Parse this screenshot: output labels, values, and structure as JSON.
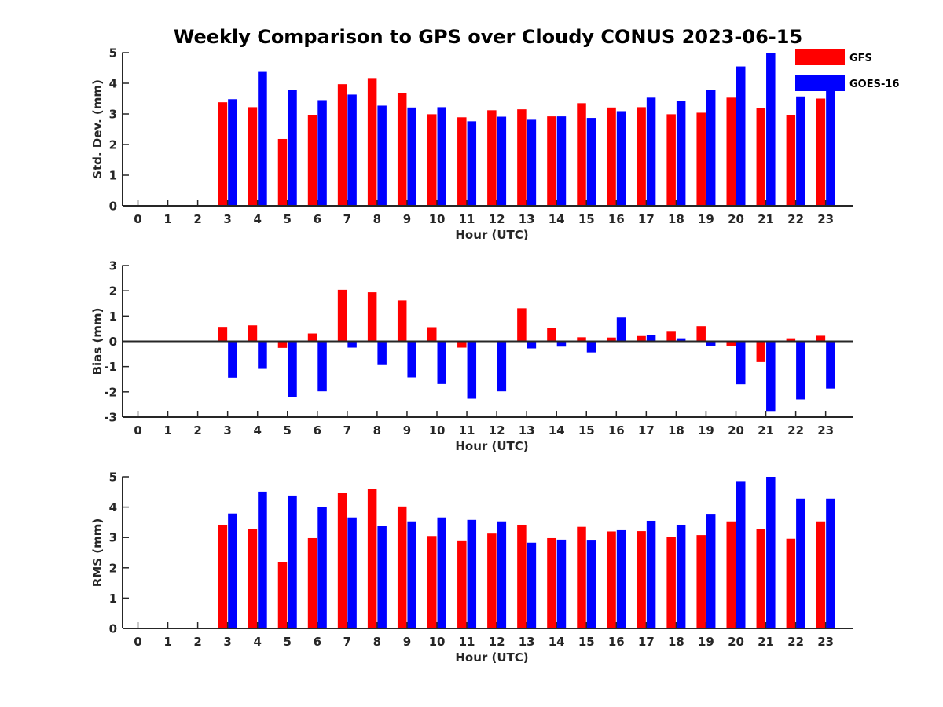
{
  "figure_title": "Weekly Comparison to GPS over Cloudy CONUS 2023-06-15",
  "colors": {
    "GFS": "#ff0000",
    "GOES-16": "#0000ff",
    "axis": "#262626"
  },
  "legend": [
    {
      "name": "GFS",
      "color": "#ff0000"
    },
    {
      "name": "GOES-16",
      "color": "#0000ff"
    }
  ],
  "chart_data": [
    {
      "type": "bar",
      "title": "",
      "xlabel": "Hour (UTC)",
      "ylabel": "Std. Dev. (mm)",
      "ylim": [
        0,
        5
      ],
      "yticks": [
        0,
        1,
        2,
        3,
        4,
        5
      ],
      "categories": [
        "0",
        "1",
        "2",
        "3",
        "4",
        "5",
        "6",
        "7",
        "8",
        "9",
        "10",
        "11",
        "12",
        "13",
        "14",
        "15",
        "16",
        "17",
        "18",
        "19",
        "20",
        "21",
        "22",
        "23"
      ],
      "series": [
        {
          "name": "GFS",
          "values": [
            0,
            0,
            0,
            3.38,
            3.22,
            2.18,
            2.96,
            3.97,
            4.17,
            3.68,
            2.99,
            2.89,
            3.12,
            3.15,
            2.92,
            3.35,
            3.21,
            3.22,
            2.99,
            3.04,
            3.53,
            3.18,
            2.96,
            3.5
          ]
        },
        {
          "name": "GOES-16",
          "values": [
            0,
            0,
            0,
            3.48,
            4.37,
            3.78,
            3.45,
            3.63,
            3.27,
            3.21,
            3.22,
            2.76,
            2.91,
            2.81,
            2.92,
            2.87,
            3.09,
            3.53,
            3.43,
            3.78,
            4.55,
            4.98,
            3.57,
            3.95
          ]
        }
      ]
    },
    {
      "type": "bar",
      "title": "",
      "xlabel": "Hour (UTC)",
      "ylabel": "Bias (mm)",
      "ylim": [
        -3,
        3
      ],
      "yticks": [
        -3,
        -2,
        -1,
        0,
        1,
        2,
        3
      ],
      "categories": [
        "0",
        "1",
        "2",
        "3",
        "4",
        "5",
        "6",
        "7",
        "8",
        "9",
        "10",
        "11",
        "12",
        "13",
        "14",
        "15",
        "16",
        "17",
        "18",
        "19",
        "20",
        "21",
        "22",
        "23"
      ],
      "series": [
        {
          "name": "GFS",
          "values": [
            0,
            0,
            0,
            0.57,
            0.63,
            -0.26,
            0.31,
            2.04,
            1.94,
            1.62,
            0.56,
            -0.25,
            -0.03,
            1.31,
            0.54,
            0.16,
            0.15,
            0.21,
            0.41,
            0.6,
            -0.17,
            -0.82,
            0.12,
            0.22
          ]
        },
        {
          "name": "GOES-16",
          "values": [
            0,
            0,
            0,
            -1.44,
            -1.09,
            -2.2,
            -1.98,
            -0.25,
            -0.94,
            -1.43,
            -1.69,
            -2.27,
            -1.98,
            -0.28,
            -0.21,
            -0.44,
            0.94,
            0.24,
            0.12,
            -0.17,
            -1.7,
            -2.76,
            -2.3,
            -1.87
          ]
        }
      ]
    },
    {
      "type": "bar",
      "title": "",
      "xlabel": "Hour (UTC)",
      "ylabel": "RMS (mm)",
      "ylim": [
        0,
        5
      ],
      "yticks": [
        0,
        1,
        2,
        3,
        4,
        5
      ],
      "categories": [
        "0",
        "1",
        "2",
        "3",
        "4",
        "5",
        "6",
        "7",
        "8",
        "9",
        "10",
        "11",
        "12",
        "13",
        "14",
        "15",
        "16",
        "17",
        "18",
        "19",
        "20",
        "21",
        "22",
        "23"
      ],
      "series": [
        {
          "name": "GFS",
          "values": [
            0,
            0,
            0,
            3.42,
            3.27,
            2.18,
            2.98,
            4.46,
            4.6,
            4.02,
            3.05,
            2.88,
            3.13,
            3.42,
            2.98,
            3.35,
            3.2,
            3.21,
            3.03,
            3.08,
            3.53,
            3.27,
            2.96,
            3.53
          ]
        },
        {
          "name": "GOES-16",
          "values": [
            0,
            0,
            0,
            3.79,
            4.51,
            4.38,
            3.99,
            3.66,
            3.39,
            3.53,
            3.66,
            3.58,
            3.53,
            2.83,
            2.93,
            2.9,
            3.24,
            3.55,
            3.42,
            3.78,
            4.86,
            5.0,
            4.28,
            4.28
          ]
        }
      ]
    }
  ]
}
